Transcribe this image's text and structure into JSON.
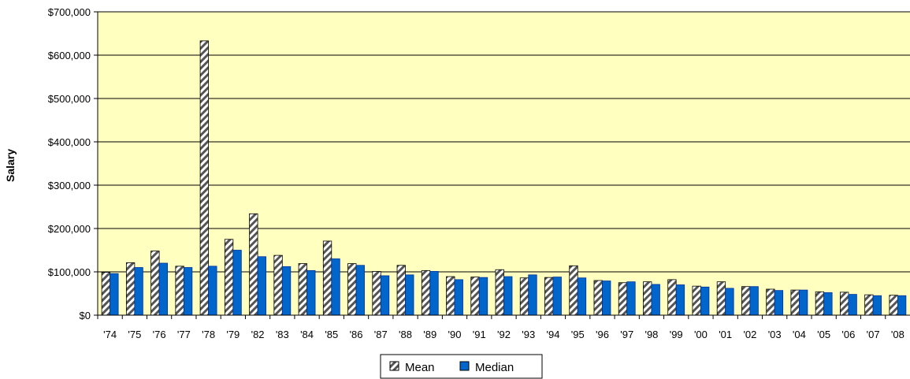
{
  "chart_data": {
    "type": "bar",
    "title": "",
    "xlabel": "",
    "ylabel": "Salary",
    "ylim": [
      0,
      700000
    ],
    "yticks": [
      0,
      100000,
      200000,
      300000,
      400000,
      500000,
      600000,
      700000
    ],
    "ytick_labels": [
      "$0",
      "$100,000",
      "$200,000",
      "$300,000",
      "$400,000",
      "$500,000",
      "$600,000",
      "$700,000"
    ],
    "grid": true,
    "legend_position": "bottom",
    "categories": [
      "'74",
      "'75",
      "'76",
      "'77",
      "'78",
      "'79",
      "'82",
      "'83",
      "'84",
      "'85",
      "'86",
      "'87",
      "'88",
      "'89",
      "'90",
      "'91",
      "'92",
      "'93",
      "'94",
      "'95",
      "'96",
      "'97",
      "'98",
      "'99",
      "'00",
      "'01",
      "'02",
      "'03",
      "'04",
      "'05",
      "'06",
      "'07",
      "'08"
    ],
    "series": [
      {
        "name": "Mean",
        "pattern": "diagonal-hatch",
        "color": "#ffffff",
        "values": [
          99000,
          121000,
          148000,
          113000,
          633000,
          175000,
          234000,
          138000,
          119000,
          171000,
          119000,
          101000,
          115000,
          103000,
          89000,
          88000,
          105000,
          86000,
          87000,
          114000,
          80000,
          75000,
          77000,
          82000,
          67000,
          77000,
          66000,
          60000,
          58000,
          54000,
          53000,
          47000,
          46000
        ]
      },
      {
        "name": "Median",
        "color": "#0066cc",
        "values": [
          96000,
          110000,
          120000,
          110000,
          113000,
          150000,
          135000,
          112000,
          103000,
          130000,
          115000,
          91000,
          93000,
          101000,
          82000,
          87000,
          89000,
          93000,
          88000,
          86000,
          79000,
          77000,
          71000,
          70000,
          65000,
          62000,
          66000,
          57000,
          58000,
          52000,
          48000,
          45000,
          45000
        ]
      }
    ]
  },
  "colors": {
    "plot_background": "#ffffc0",
    "page_background": "#ffffff",
    "axis": "#000000",
    "gridline": "#000000",
    "median_fill": "#0066cc",
    "median_edge": "#003399"
  }
}
